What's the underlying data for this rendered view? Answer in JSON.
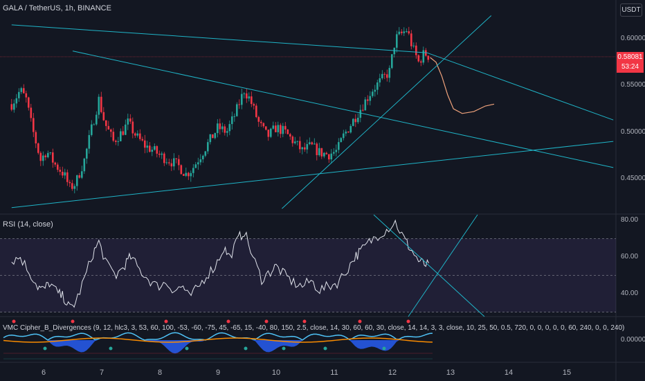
{
  "chart_data": [
    {
      "type": "candlestick",
      "title": "GALA / TetherUS, 1h, BINANCE",
      "y_axis_unit": "USDT",
      "ylim": [
        0.42,
        0.625
      ],
      "yticks": [
        0.45,
        0.5,
        0.55,
        0.6
      ],
      "ytick_labels": [
        "0.45000",
        "0.50000",
        "0.55000",
        "0.60000"
      ],
      "x_tick_labels": [
        "6",
        "7",
        "8",
        "9",
        "10",
        "11",
        "12",
        "13",
        "14",
        "15"
      ],
      "x_tick_day": [
        6,
        7,
        8,
        9,
        10,
        11,
        12,
        13,
        14,
        15
      ],
      "last_price_label": "0.58081",
      "countdown_label": "53:24",
      "close_path": [
        [
          5.45,
          0.53
        ],
        [
          5.6,
          0.545
        ],
        [
          5.7,
          0.535
        ],
        [
          5.8,
          0.505
        ],
        [
          5.95,
          0.47
        ],
        [
          6.05,
          0.48
        ],
        [
          6.2,
          0.465
        ],
        [
          6.35,
          0.455
        ],
        [
          6.45,
          0.44
        ],
        [
          6.55,
          0.445
        ],
        [
          6.7,
          0.47
        ],
        [
          6.85,
          0.51
        ],
        [
          6.95,
          0.535
        ],
        [
          7.05,
          0.51
        ],
        [
          7.2,
          0.49
        ],
        [
          7.35,
          0.5
        ],
        [
          7.45,
          0.51
        ],
        [
          7.6,
          0.495
        ],
        [
          7.75,
          0.485
        ],
        [
          7.9,
          0.48
        ],
        [
          8.0,
          0.475
        ],
        [
          8.15,
          0.47
        ],
        [
          8.3,
          0.465
        ],
        [
          8.45,
          0.455
        ],
        [
          8.55,
          0.46
        ],
        [
          8.7,
          0.475
        ],
        [
          8.85,
          0.49
        ],
        [
          9.0,
          0.505
        ],
        [
          9.15,
          0.5
        ],
        [
          9.3,
          0.52
        ],
        [
          9.45,
          0.545
        ],
        [
          9.55,
          0.535
        ],
        [
          9.7,
          0.51
        ],
        [
          9.85,
          0.495
        ],
        [
          10.0,
          0.505
        ],
        [
          10.15,
          0.5
        ],
        [
          10.3,
          0.49
        ],
        [
          10.45,
          0.48
        ],
        [
          10.6,
          0.485
        ],
        [
          10.75,
          0.478
        ],
        [
          10.9,
          0.476
        ],
        [
          11.05,
          0.48
        ],
        [
          11.15,
          0.495
        ],
        [
          11.3,
          0.51
        ],
        [
          11.45,
          0.525
        ],
        [
          11.55,
          0.535
        ],
        [
          11.65,
          0.545
        ],
        [
          11.8,
          0.555
        ],
        [
          11.95,
          0.565
        ],
        [
          12.05,
          0.6
        ],
        [
          12.15,
          0.605
        ],
        [
          12.25,
          0.61
        ],
        [
          12.35,
          0.59
        ],
        [
          12.45,
          0.575
        ],
        [
          12.55,
          0.585
        ],
        [
          12.65,
          0.58
        ]
      ],
      "projection_path": [
        [
          12.65,
          0.58
        ],
        [
          12.75,
          0.575
        ],
        [
          12.85,
          0.56
        ],
        [
          12.95,
          0.54
        ],
        [
          13.05,
          0.525
        ],
        [
          13.2,
          0.52
        ],
        [
          13.4,
          0.522
        ],
        [
          13.6,
          0.528
        ],
        [
          13.75,
          0.53
        ]
      ],
      "trend_lines": [
        {
          "from": [
            5.45,
            0.615
          ],
          "to": [
            12.6,
            0.585
          ]
        },
        {
          "from": [
            12.6,
            0.585
          ],
          "to": [
            15.8,
            0.513
          ]
        },
        {
          "from": [
            6.5,
            0.587
          ],
          "to": [
            15.8,
            0.462
          ]
        },
        {
          "from": [
            5.45,
            0.419
          ],
          "to": [
            15.8,
            0.49
          ]
        },
        {
          "from": [
            10.1,
            0.418
          ],
          "to": [
            13.7,
            0.625
          ]
        },
        {
          "from": [
            12.5,
            0.625
          ],
          "to": [
            12.9,
            0.625
          ]
        }
      ]
    },
    {
      "type": "line",
      "title": "RSI (14, close)",
      "ylim": [
        27,
        82
      ],
      "yticks": [
        40,
        60,
        80
      ],
      "ytick_labels": [
        "40.00",
        "60.00",
        "80.00"
      ],
      "bands": [
        30,
        50,
        70
      ],
      "x": [
        5.45,
        5.6,
        5.75,
        5.9,
        6.0,
        6.1,
        6.25,
        6.35,
        6.45,
        6.55,
        6.7,
        6.85,
        6.95,
        7.1,
        7.25,
        7.4,
        7.5,
        7.65,
        7.8,
        7.95,
        8.1,
        8.25,
        8.4,
        8.5,
        8.65,
        8.8,
        8.95,
        9.1,
        9.2,
        9.35,
        9.45,
        9.6,
        9.75,
        9.9,
        10.0,
        10.15,
        10.3,
        10.45,
        10.6,
        10.75,
        10.9,
        11.05,
        11.2,
        11.35,
        11.45,
        11.6,
        11.75,
        11.9,
        12.05,
        12.2,
        12.3,
        12.45,
        12.55,
        12.65
      ],
      "values": [
        58,
        60,
        52,
        44,
        42,
        46,
        40,
        38,
        32,
        35,
        48,
        62,
        68,
        55,
        50,
        56,
        60,
        53,
        48,
        44,
        46,
        42,
        44,
        38,
        43,
        50,
        55,
        65,
        60,
        70,
        74,
        60,
        48,
        52,
        55,
        50,
        46,
        44,
        47,
        42,
        44,
        46,
        52,
        60,
        63,
        68,
        72,
        75,
        79,
        70,
        65,
        58,
        56,
        55
      ]
    },
    {
      "type": "area",
      "title": "VMC Cipher_B_Divergences",
      "parameters_label": "(9, 12, hlc3, 3, 53, 60, 100, -53, -60, -75, 45, -65, 15, -40, 80, 150, 2.5, close, 14, 30, 60, 60, 30, close, 14, 14, 3, 3, close, 10, 25, 50, 0.5, 720, 0, 0, 0, 0, 0, 60, 240, 0, 0, 240)",
      "ytick_labels": [
        "0.00000"
      ],
      "colors": {
        "wave_blue": "#2962ff",
        "wave_light": "#4fc3f7",
        "pos": "#26a69a",
        "neg": "#f23645",
        "money_flow": "#fb8c00"
      }
    }
  ],
  "axis_badge": "USDT",
  "colors": {
    "background": "#131722",
    "up": "#26a69a",
    "down": "#f23645",
    "trend": "#1fb5c8",
    "rsi_band": "#7e57c2",
    "projection": "#f0a37c"
  }
}
